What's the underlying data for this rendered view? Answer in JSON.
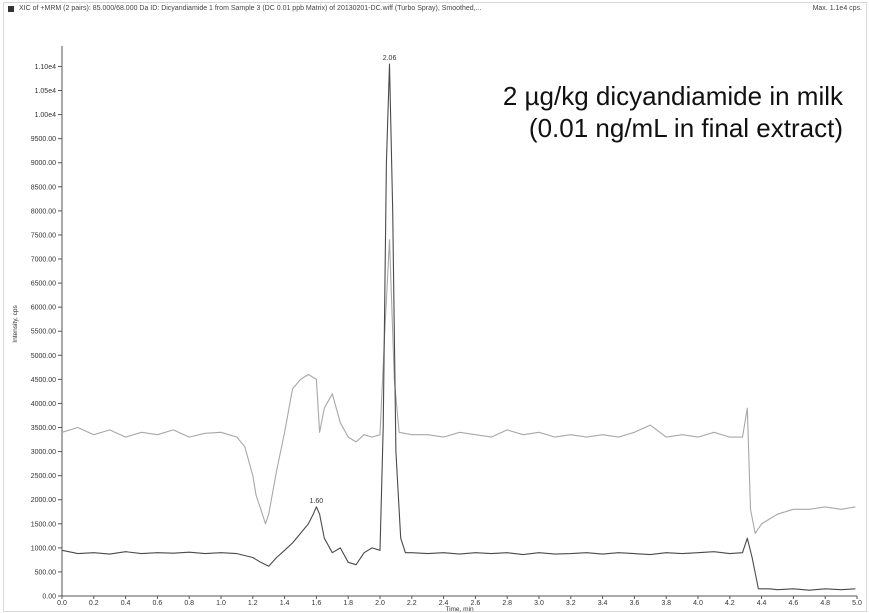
{
  "header": {
    "title": "XIC of +MRM (2 pairs): 85.000/68.000 Da ID: Dicyandiamide 1 from Sample 3 (DC 0.01 ppb Matrix) of 20130201-DC.wiff (Turbo Spray), Smoothed,...",
    "max_label": "Max. 1.1e4 cps."
  },
  "annotation": {
    "line1": "2 µg/kg dicyandiamide in milk",
    "line2": "(0.01 ng/mL in final extract)"
  },
  "chart_data": {
    "type": "line",
    "xlabel": "Time, min",
    "ylabel": "Intensity, cps",
    "xlim": [
      0.0,
      5.0
    ],
    "ylim": [
      0,
      11300
    ],
    "x_ticks": [
      "0.0",
      "0.2",
      "0.4",
      "0.6",
      "0.8",
      "1.0",
      "1.2",
      "1.4",
      "1.6",
      "1.8",
      "2.0",
      "2.2",
      "2.4",
      "2.6",
      "2.8",
      "3.0",
      "3.2",
      "3.4",
      "3.6",
      "3.8",
      "4.0",
      "4.2",
      "4.4",
      "4.6",
      "4.8",
      "5.0"
    ],
    "y_ticks": [
      {
        "value": 0,
        "label": "0.00"
      },
      {
        "value": 500,
        "label": "500.00"
      },
      {
        "value": 1000,
        "label": "1000.00"
      },
      {
        "value": 1500,
        "label": "1500.00"
      },
      {
        "value": 2000,
        "label": "2000.00"
      },
      {
        "value": 2500,
        "label": "2500.00"
      },
      {
        "value": 3000,
        "label": "3000.00"
      },
      {
        "value": 3500,
        "label": "3500.00"
      },
      {
        "value": 4000,
        "label": "4000.00"
      },
      {
        "value": 4500,
        "label": "4500.00"
      },
      {
        "value": 5000,
        "label": "5000.00"
      },
      {
        "value": 5500,
        "label": "5500.00"
      },
      {
        "value": 6000,
        "label": "6000.00"
      },
      {
        "value": 6500,
        "label": "6500.00"
      },
      {
        "value": 7000,
        "label": "7000.00"
      },
      {
        "value": 7500,
        "label": "7500.00"
      },
      {
        "value": 8000,
        "label": "8000.00"
      },
      {
        "value": 8500,
        "label": "8500.00"
      },
      {
        "value": 9000,
        "label": "9000.00"
      },
      {
        "value": 9500,
        "label": "9500.00"
      },
      {
        "value": 10000,
        "label": "1.00e4"
      },
      {
        "value": 10500,
        "label": "1.05e4"
      },
      {
        "value": 11000,
        "label": "1.10e4"
      }
    ],
    "grid": false,
    "series": [
      {
        "color": "#a8a8a8",
        "x": [
          0.0,
          0.1,
          0.2,
          0.3,
          0.4,
          0.5,
          0.6,
          0.7,
          0.8,
          0.9,
          1.0,
          1.1,
          1.15,
          1.2,
          1.22,
          1.25,
          1.28,
          1.3,
          1.35,
          1.4,
          1.45,
          1.5,
          1.55,
          1.6,
          1.62,
          1.65,
          1.7,
          1.75,
          1.8,
          1.85,
          1.9,
          1.95,
          2.0,
          2.03,
          2.06,
          2.09,
          2.12,
          2.2,
          2.3,
          2.4,
          2.5,
          2.6,
          2.7,
          2.8,
          2.9,
          3.0,
          3.1,
          3.2,
          3.3,
          3.4,
          3.5,
          3.6,
          3.7,
          3.8,
          3.9,
          4.0,
          4.1,
          4.2,
          4.28,
          4.31,
          4.33,
          4.36,
          4.4,
          4.45,
          4.5,
          4.6,
          4.7,
          4.8,
          4.9,
          4.99
        ],
        "y": [
          3400,
          3500,
          3350,
          3450,
          3300,
          3400,
          3350,
          3450,
          3300,
          3380,
          3400,
          3300,
          3100,
          2500,
          2100,
          1800,
          1500,
          1700,
          2600,
          3400,
          4300,
          4500,
          4600,
          4500,
          3400,
          3900,
          4200,
          3600,
          3300,
          3200,
          3350,
          3300,
          3350,
          5500,
          7400,
          4500,
          3400,
          3350,
          3350,
          3300,
          3400,
          3350,
          3300,
          3450,
          3350,
          3400,
          3300,
          3350,
          3300,
          3350,
          3300,
          3400,
          3550,
          3300,
          3350,
          3300,
          3400,
          3300,
          3300,
          3900,
          1800,
          1300,
          1500,
          1600,
          1700,
          1800,
          1800,
          1850,
          1800,
          1850
        ]
      },
      {
        "color": "#4a4a4a",
        "x": [
          0.0,
          0.1,
          0.2,
          0.3,
          0.4,
          0.5,
          0.6,
          0.7,
          0.8,
          0.9,
          1.0,
          1.1,
          1.2,
          1.25,
          1.3,
          1.35,
          1.4,
          1.45,
          1.5,
          1.55,
          1.58,
          1.6,
          1.62,
          1.65,
          1.7,
          1.75,
          1.8,
          1.85,
          1.9,
          1.95,
          2.0,
          2.02,
          2.04,
          2.06,
          2.08,
          2.1,
          2.13,
          2.16,
          2.2,
          2.3,
          2.4,
          2.5,
          2.6,
          2.7,
          2.8,
          2.9,
          3.0,
          3.1,
          3.2,
          3.3,
          3.4,
          3.5,
          3.6,
          3.7,
          3.8,
          3.9,
          4.0,
          4.1,
          4.2,
          4.28,
          4.31,
          4.34,
          4.38,
          4.45,
          4.5,
          4.6,
          4.7,
          4.8,
          4.9,
          4.99
        ],
        "y": [
          950,
          880,
          900,
          870,
          920,
          880,
          900,
          890,
          910,
          880,
          900,
          880,
          800,
          700,
          620,
          800,
          950,
          1100,
          1300,
          1500,
          1700,
          1850,
          1700,
          1200,
          900,
          1000,
          700,
          650,
          900,
          1000,
          950,
          3500,
          9000,
          11050,
          8000,
          3000,
          1200,
          900,
          900,
          880,
          900,
          870,
          900,
          880,
          900,
          860,
          900,
          870,
          880,
          900,
          870,
          900,
          880,
          860,
          900,
          880,
          900,
          920,
          880,
          900,
          1200,
          800,
          150,
          150,
          130,
          150,
          120,
          150,
          130,
          150
        ]
      }
    ],
    "peak_labels": [
      {
        "x": 2.06,
        "y": 11050,
        "label": "2.06"
      },
      {
        "x": 1.6,
        "y": 1850,
        "label": "1.60"
      }
    ]
  }
}
